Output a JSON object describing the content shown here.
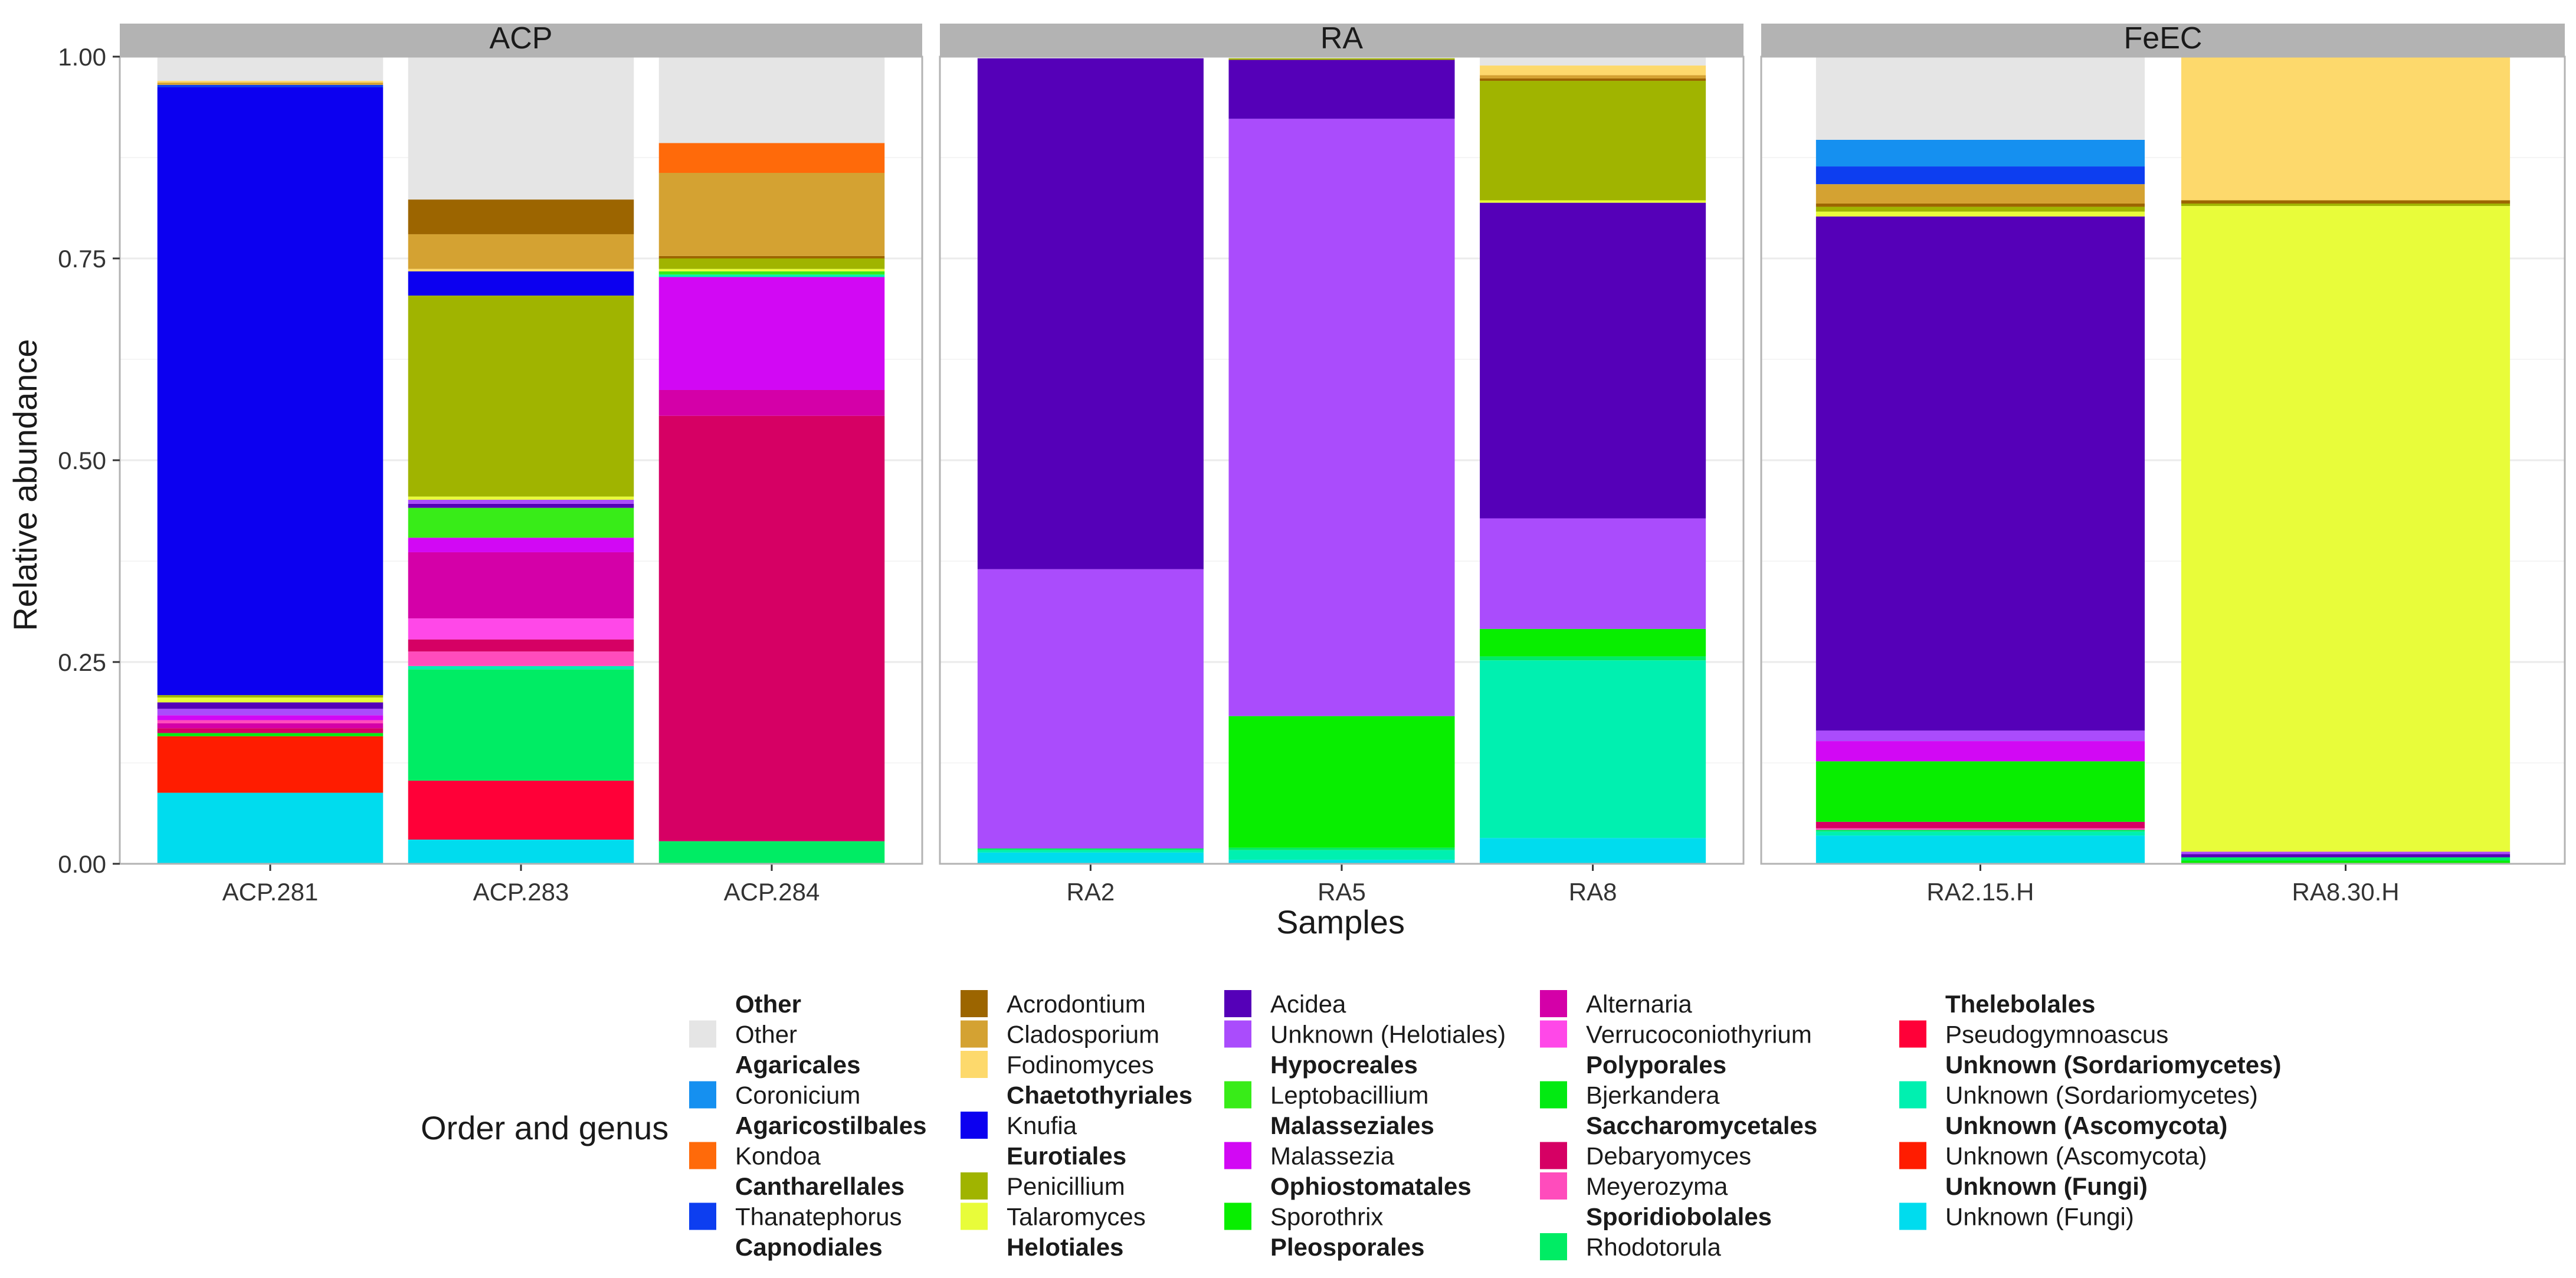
{
  "chart_data": {
    "type": "bar",
    "stacked": true,
    "xlabel": "Samples",
    "ylabel": "Relative abundance",
    "ylim": [
      0,
      1
    ],
    "yticks": [
      "0.00",
      "0.25",
      "0.50",
      "0.75",
      "1.00"
    ],
    "legend_title": "Order and genus",
    "legend_position": "bottom",
    "legend_columns": [
      [
        {
          "label": "Other",
          "header": true
        },
        {
          "label": "Other",
          "color": "#e5e5e5"
        },
        {
          "label": "Agaricales",
          "header": true
        },
        {
          "label": "Coronicium",
          "color": "#1590f0"
        },
        {
          "label": "Agaricostilbales",
          "header": true
        },
        {
          "label": "Kondoa",
          "color": "#ff6a0a"
        },
        {
          "label": "Cantharellales",
          "header": true
        },
        {
          "label": "Thanatephorus",
          "color": "#0d3ef0"
        },
        {
          "label": "Capnodiales",
          "header": true
        }
      ],
      [
        {
          "label": "Acrodontium",
          "color": "#9c6500"
        },
        {
          "label": "Cladosporium",
          "color": "#d4a232"
        },
        {
          "label": "Fodinomyces",
          "color": "#fdd96c"
        },
        {
          "label": "Chaetothyriales",
          "header": true
        },
        {
          "label": "Knufia",
          "color": "#0c00f0"
        },
        {
          "label": "Eurotiales",
          "header": true
        },
        {
          "label": "Penicillium",
          "color": "#a0b400"
        },
        {
          "label": "Talaromyces",
          "color": "#e8fc3a"
        },
        {
          "label": "Helotiales",
          "header": true
        }
      ],
      [
        {
          "label": "Acidea",
          "color": "#5500b8"
        },
        {
          "label": "Unknown (Helotiales)",
          "color": "#aa4cfc"
        },
        {
          "label": "Hypocreales",
          "header": true
        },
        {
          "label": "Leptobacillium",
          "color": "#38ec18"
        },
        {
          "label": "Malasseziales",
          "header": true
        },
        {
          "label": "Malassezia",
          "color": "#d208f4"
        },
        {
          "label": "Ophiostomatales",
          "header": true
        },
        {
          "label": "Sporothrix",
          "color": "#08ee00"
        },
        {
          "label": "Pleosporales",
          "header": true
        }
      ],
      [
        {
          "label": "Alternaria",
          "color": "#d400a8"
        },
        {
          "label": "Verrucoconiothyrium",
          "color": "#ff48e8"
        },
        {
          "label": "Polyporales",
          "header": true
        },
        {
          "label": "Bjerkandera",
          "color": "#02ea12"
        },
        {
          "label": "Saccharomycetales",
          "header": true
        },
        {
          "label": "Debaryomyces",
          "color": "#d60064"
        },
        {
          "label": "Meyerozyma",
          "color": "#ff4cbc"
        },
        {
          "label": "Sporidiobolales",
          "header": true
        },
        {
          "label": "Rhodotorula",
          "color": "#00ec64"
        }
      ],
      [
        {
          "label": "Thelebolales",
          "header": true
        },
        {
          "label": "Pseudogymnoascus",
          "color": "#ff0038"
        },
        {
          "label": "Unknown (Sordariomycetes)",
          "header": true
        },
        {
          "label": "Unknown (Sordariomycetes)",
          "color": "#00f0b0"
        },
        {
          "label": "Unknown (Ascomycota)",
          "header": true
        },
        {
          "label": "Unknown (Ascomycota)",
          "color": "#ff1c00"
        },
        {
          "label": "Unknown (Fungi)",
          "header": true
        },
        {
          "label": "Unknown (Fungi)",
          "color": "#00dcee"
        }
      ]
    ],
    "facets": [
      {
        "title": "ACP",
        "samples": [
          {
            "name": "ACP.281",
            "segments": [
              {
                "genus": "Unknown (Fungi)",
                "value": 0.088
              },
              {
                "genus": "Unknown (Ascomycota)",
                "value": 0.07
              },
              {
                "genus": "Bjerkandera",
                "value": 0.004
              },
              {
                "genus": "Debaryomyces",
                "value": 0.006
              },
              {
                "genus": "Alternaria",
                "value": 0.006
              },
              {
                "genus": "Meyerozyma",
                "value": 0.004
              },
              {
                "genus": "Malassezia",
                "value": 0.006
              },
              {
                "genus": "Unknown (Helotiales)",
                "value": 0.008
              },
              {
                "genus": "Acidea",
                "value": 0.008
              },
              {
                "genus": "Talaromyces",
                "value": 0.006
              },
              {
                "genus": "Penicillium",
                "value": 0.003
              },
              {
                "genus": "Knufia",
                "value": 0.753
              },
              {
                "genus": "Thanatephorus",
                "value": 0.003
              },
              {
                "genus": "Cladosporium",
                "value": 0.003
              },
              {
                "genus": "Fodinomyces",
                "value": 0.002
              },
              {
                "genus": "Other",
                "value": 0.03
              }
            ]
          },
          {
            "name": "ACP.283",
            "segments": [
              {
                "genus": "Unknown (Fungi)",
                "value": 0.03
              },
              {
                "genus": "Pseudogymnoascus",
                "value": 0.073
              },
              {
                "genus": "Rhodotorula",
                "value": 0.138
              },
              {
                "genus": "Unknown (Sordariomycetes)",
                "value": 0.004
              },
              {
                "genus": "Meyerozyma",
                "value": 0.018
              },
              {
                "genus": "Debaryomyces",
                "value": 0.015
              },
              {
                "genus": "Verrucoconiothyrium",
                "value": 0.026
              },
              {
                "genus": "Alternaria",
                "value": 0.082
              },
              {
                "genus": "Malassezia",
                "value": 0.018
              },
              {
                "genus": "Leptobacillium",
                "value": 0.037
              },
              {
                "genus": "Acidea",
                "value": 0.005
              },
              {
                "genus": "Unknown (Helotiales)",
                "value": 0.005
              },
              {
                "genus": "Talaromyces",
                "value": 0.004
              },
              {
                "genus": "Penicillium",
                "value": 0.249
              },
              {
                "genus": "Knufia",
                "value": 0.03
              },
              {
                "genus": "Fodinomyces",
                "value": 0.003
              },
              {
                "genus": "Cladosporium",
                "value": 0.043
              },
              {
                "genus": "Acrodontium",
                "value": 0.043
              },
              {
                "genus": "Other",
                "value": 0.177
              }
            ]
          },
          {
            "name": "ACP.284",
            "segments": [
              {
                "genus": "Rhodotorula",
                "value": 0.028
              },
              {
                "genus": "Debaryomyces",
                "value": 0.527
              },
              {
                "genus": "Alternaria",
                "value": 0.032
              },
              {
                "genus": "Malassezia",
                "value": 0.14
              },
              {
                "genus": "Unknown (Sordariomycetes)",
                "value": 0.003
              },
              {
                "genus": "Leptobacillium",
                "value": 0.004
              },
              {
                "genus": "Talaromyces",
                "value": 0.003
              },
              {
                "genus": "Penicillium",
                "value": 0.013
              },
              {
                "genus": "Acrodontium",
                "value": 0.003
              },
              {
                "genus": "Cladosporium",
                "value": 0.103
              },
              {
                "genus": "Kondoa",
                "value": 0.037
              },
              {
                "genus": "Other",
                "value": 0.107
              }
            ]
          }
        ]
      },
      {
        "title": "RA",
        "samples": [
          {
            "name": "RA2",
            "segments": [
              {
                "genus": "Unknown (Fungi)",
                "value": 0.014
              },
              {
                "genus": "Unknown (Sordariomycetes)",
                "value": 0.003
              },
              {
                "genus": "Rhodotorula",
                "value": 0.002
              },
              {
                "genus": "Unknown (Helotiales)",
                "value": 0.346
              },
              {
                "genus": "Acidea",
                "value": 0.633
              },
              {
                "genus": "Other",
                "value": 0.002
              }
            ]
          },
          {
            "name": "RA5",
            "segments": [
              {
                "genus": "Unknown (Fungi)",
                "value": 0.005
              },
              {
                "genus": "Unknown (Sordariomycetes)",
                "value": 0.012
              },
              {
                "genus": "Rhodotorula",
                "value": 0.003
              },
              {
                "genus": "Sporothrix",
                "value": 0.163
              },
              {
                "genus": "Unknown (Helotiales)",
                "value": 0.74
              },
              {
                "genus": "Acidea",
                "value": 0.073
              },
              {
                "genus": "Penicillium",
                "value": 0.002
              },
              {
                "genus": "Other",
                "value": 0.002
              }
            ]
          },
          {
            "name": "RA8",
            "segments": [
              {
                "genus": "Unknown (Fungi)",
                "value": 0.032
              },
              {
                "genus": "Unknown (Sordariomycetes)",
                "value": 0.22
              },
              {
                "genus": "Rhodotorula",
                "value": 0.005
              },
              {
                "genus": "Sporothrix",
                "value": 0.034
              },
              {
                "genus": "Unknown (Helotiales)",
                "value": 0.137
              },
              {
                "genus": "Acidea",
                "value": 0.391
              },
              {
                "genus": "Talaromyces",
                "value": 0.003
              },
              {
                "genus": "Penicillium",
                "value": 0.148
              },
              {
                "genus": "Acrodontium",
                "value": 0.003
              },
              {
                "genus": "Cladosporium",
                "value": 0.004
              },
              {
                "genus": "Fodinomyces",
                "value": 0.012
              },
              {
                "genus": "Other",
                "value": 0.011
              }
            ]
          }
        ]
      },
      {
        "title": "FeEC",
        "samples": [
          {
            "name": "RA2.15.H",
            "segments": [
              {
                "genus": "Unknown (Fungi)",
                "value": 0.035
              },
              {
                "genus": "Unknown (Sordariomycetes)",
                "value": 0.005
              },
              {
                "genus": "Rhodotorula",
                "value": 0.002
              },
              {
                "genus": "Meyerozyma",
                "value": 0.002
              },
              {
                "genus": "Debaryomyces",
                "value": 0.008
              },
              {
                "genus": "Sporothrix",
                "value": 0.075
              },
              {
                "genus": "Malassezia",
                "value": 0.025
              },
              {
                "genus": "Unknown (Helotiales)",
                "value": 0.013
              },
              {
                "genus": "Acidea",
                "value": 0.637
              },
              {
                "genus": "Talaromyces",
                "value": 0.006
              },
              {
                "genus": "Penicillium",
                "value": 0.006
              },
              {
                "genus": "Acrodontium",
                "value": 0.004
              },
              {
                "genus": "Cladosporium",
                "value": 0.024
              },
              {
                "genus": "Thanatephorus",
                "value": 0.022
              },
              {
                "genus": "Coronicium",
                "value": 0.033
              },
              {
                "genus": "Other",
                "value": 0.103
              }
            ]
          },
          {
            "name": "RA8.30.H",
            "segments": [
              {
                "genus": "Sporothrix",
                "value": 0.004
              },
              {
                "genus": "Rhodotorula",
                "value": 0.004
              },
              {
                "genus": "Acidea",
                "value": 0.004
              },
              {
                "genus": "Unknown (Helotiales)",
                "value": 0.003
              },
              {
                "genus": "Talaromyces",
                "value": 0.8
              },
              {
                "genus": "Penicillium",
                "value": 0.003
              },
              {
                "genus": "Acrodontium",
                "value": 0.004
              },
              {
                "genus": "Fodinomyces",
                "value": 0.178
              }
            ]
          }
        ]
      }
    ]
  }
}
